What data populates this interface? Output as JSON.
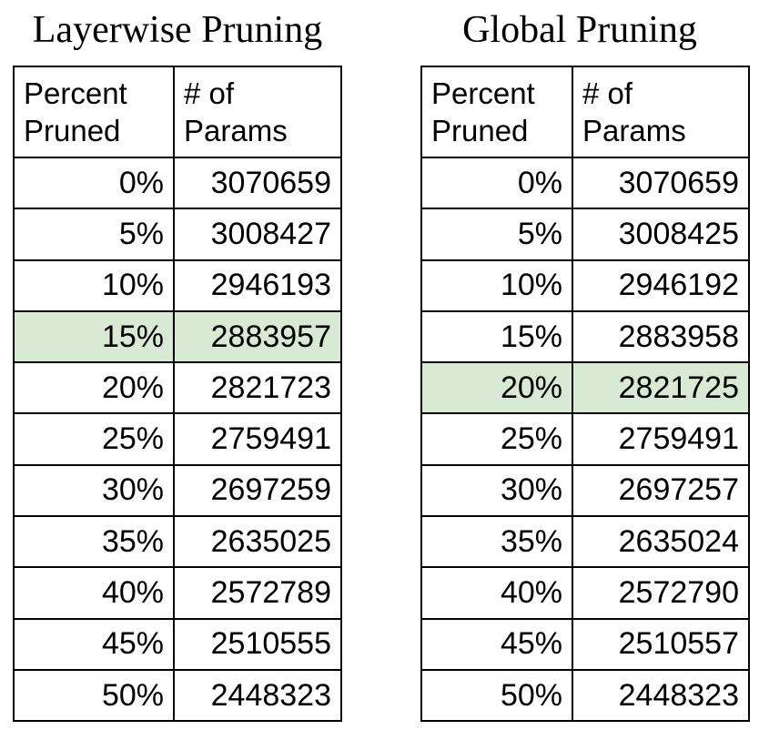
{
  "chart_data": [
    {
      "type": "table",
      "title": "Layerwise Pruning",
      "columns": [
        "Percent Pruned",
        "# of Params"
      ],
      "columns_display": [
        [
          "Percent",
          "Pruned"
        ],
        [
          "# of",
          "Params"
        ]
      ],
      "rows": [
        [
          "0%",
          "3070659"
        ],
        [
          "5%",
          "3008427"
        ],
        [
          "10%",
          "2946193"
        ],
        [
          "15%",
          "2883957"
        ],
        [
          "20%",
          "2821723"
        ],
        [
          "25%",
          "2759491"
        ],
        [
          "30%",
          "2697259"
        ],
        [
          "35%",
          "2635025"
        ],
        [
          "40%",
          "2572789"
        ],
        [
          "45%",
          "2510555"
        ],
        [
          "50%",
          "2448323"
        ]
      ],
      "highlighted_row": 3,
      "highlight_color": "#d8ead3"
    },
    {
      "type": "table",
      "title": "Global Pruning",
      "columns": [
        "Percent Pruned",
        "# of Params"
      ],
      "columns_display": [
        [
          "Percent",
          "Pruned"
        ],
        [
          "# of",
          "Params"
        ]
      ],
      "rows": [
        [
          "0%",
          "3070659"
        ],
        [
          "5%",
          "3008425"
        ],
        [
          "10%",
          "2946192"
        ],
        [
          "15%",
          "2883958"
        ],
        [
          "20%",
          "2821725"
        ],
        [
          "25%",
          "2759491"
        ],
        [
          "30%",
          "2697257"
        ],
        [
          "35%",
          "2635024"
        ],
        [
          "40%",
          "2572790"
        ],
        [
          "45%",
          "2510557"
        ],
        [
          "50%",
          "2448323"
        ]
      ],
      "highlighted_row": 4,
      "highlight_color": "#d8ead3"
    }
  ]
}
